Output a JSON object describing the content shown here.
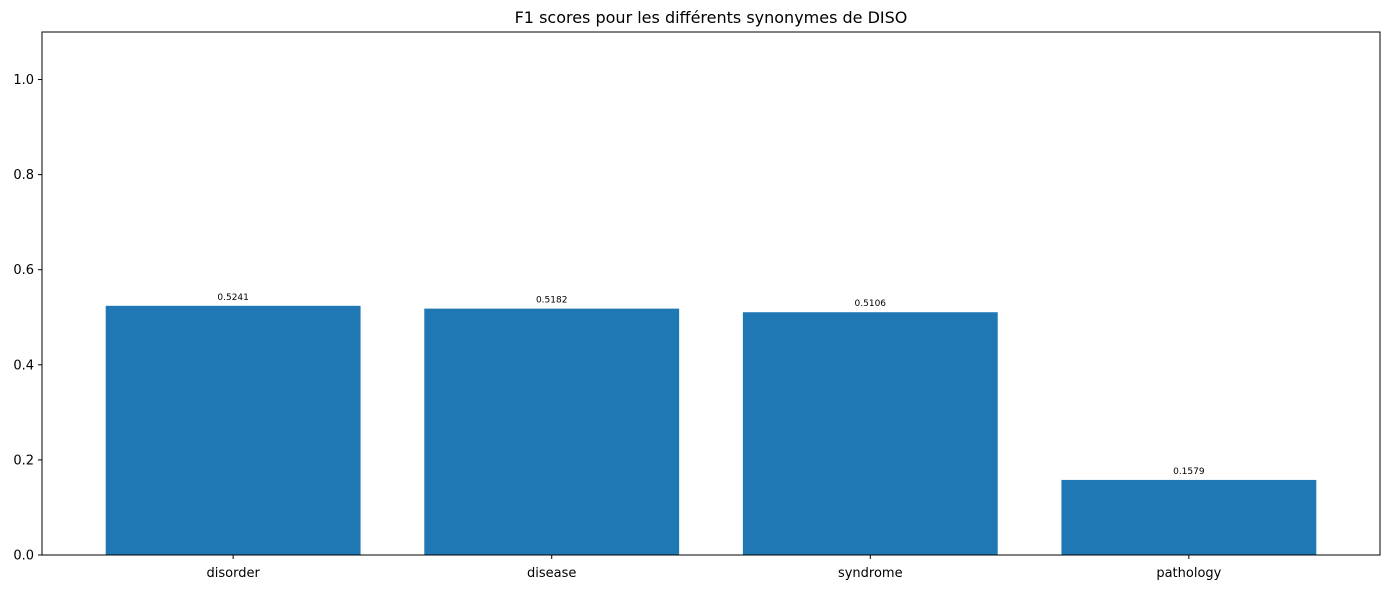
{
  "chart_data": {
    "type": "bar",
    "title": "F1 scores pour les différents synonymes de DISO",
    "xlabel": "",
    "ylabel": "",
    "categories": [
      "disorder",
      "disease",
      "syndrome",
      "pathology"
    ],
    "values": [
      0.5241,
      0.5182,
      0.5106,
      0.1579
    ],
    "data_labels": [
      "0.5241",
      "0.5182",
      "0.5106",
      "0.1579"
    ],
    "ylim": [
      0,
      1.1
    ],
    "yticks": [
      0.0,
      0.2,
      0.4,
      0.6,
      0.8,
      1.0
    ],
    "ytick_labels": [
      "0.0",
      "0.2",
      "0.4",
      "0.6",
      "0.8",
      "1.0"
    ],
    "bar_color": "#1f77b4",
    "grid": false,
    "legend": "none"
  }
}
